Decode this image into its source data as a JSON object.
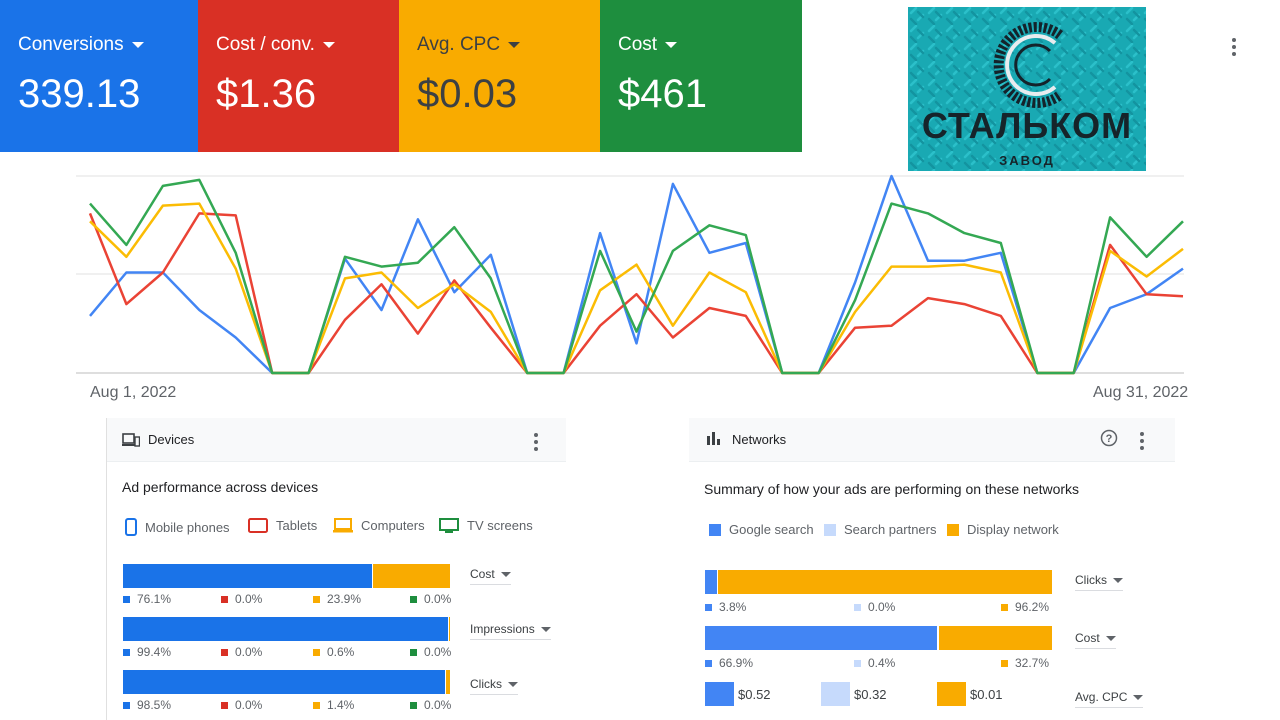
{
  "metrics": [
    {
      "id": "conversions",
      "label": "Conversions",
      "value": "339.13",
      "color": "#1a73e8"
    },
    {
      "id": "cost-conv",
      "label": "Cost / conv.",
      "value": "$1.36",
      "color": "#d93025"
    },
    {
      "id": "avg-cpc",
      "label": "Avg. CPC",
      "value": "$0.03",
      "color": "#f9ab00"
    },
    {
      "id": "cost",
      "label": "Cost",
      "value": "$461",
      "color": "#1e8e3e"
    }
  ],
  "logo": {
    "name": "СТАЛЬКОМ",
    "sub": "ЗАВОД"
  },
  "chart_data": {
    "type": "line",
    "x_start": "Aug 1, 2022",
    "x_end": "Aug 31, 2022",
    "grid": true,
    "series": [
      {
        "color": "#4285f4",
        "values": [
          0.29,
          0.51,
          0.51,
          0.32,
          0.18,
          0.0,
          0.0,
          0.58,
          0.32,
          0.78,
          0.41,
          0.6,
          0.0,
          0.0,
          0.71,
          0.15,
          0.96,
          0.61,
          0.66,
          0.0,
          0.0,
          0.46,
          1.0,
          0.57,
          0.57,
          0.61,
          0.0,
          0.0,
          0.33,
          0.4,
          0.53
        ]
      },
      {
        "color": "#ea4335",
        "values": [
          0.81,
          0.35,
          0.51,
          0.81,
          0.8,
          0.0,
          0.0,
          0.27,
          0.45,
          0.2,
          0.47,
          0.23,
          0.0,
          0.0,
          0.24,
          0.4,
          0.18,
          0.33,
          0.29,
          0.0,
          0.0,
          0.23,
          0.24,
          0.38,
          0.35,
          0.29,
          0.0,
          0.0,
          0.65,
          0.4,
          0.39
        ]
      },
      {
        "color": "#fbbc04",
        "values": [
          0.77,
          0.59,
          0.85,
          0.86,
          0.53,
          0.0,
          0.0,
          0.48,
          0.51,
          0.33,
          0.45,
          0.31,
          0.0,
          0.0,
          0.42,
          0.55,
          0.24,
          0.51,
          0.41,
          0.0,
          0.0,
          0.31,
          0.54,
          0.54,
          0.55,
          0.51,
          0.0,
          0.0,
          0.62,
          0.49,
          0.63
        ]
      },
      {
        "color": "#34a853",
        "values": [
          0.86,
          0.65,
          0.95,
          0.98,
          0.61,
          0.0,
          0.0,
          0.59,
          0.54,
          0.56,
          0.74,
          0.48,
          0.0,
          0.0,
          0.62,
          0.21,
          0.62,
          0.75,
          0.7,
          0.0,
          0.0,
          0.37,
          0.86,
          0.81,
          0.71,
          0.66,
          0.0,
          0.0,
          0.79,
          0.59,
          0.77
        ]
      }
    ]
  },
  "devices": {
    "title": "Devices",
    "subtitle": "Ad performance across devices",
    "legend": [
      {
        "label": "Mobile phones",
        "color": "#1a73e8"
      },
      {
        "label": "Tablets",
        "color": "#d93025"
      },
      {
        "label": "Computers",
        "color": "#f9ab00"
      },
      {
        "label": "TV screens",
        "color": "#1e8e3e"
      }
    ],
    "rows": [
      {
        "metric": "Cost",
        "values": [
          76.1,
          0.0,
          23.9,
          0.0
        ],
        "labels": [
          "76.1%",
          "0.0%",
          "23.9%",
          "0.0%"
        ]
      },
      {
        "metric": "Impressions",
        "values": [
          99.4,
          0.0,
          0.6,
          0.0
        ],
        "labels": [
          "99.4%",
          "0.0%",
          "0.6%",
          "0.0%"
        ]
      },
      {
        "metric": "Clicks",
        "values": [
          98.5,
          0.0,
          1.4,
          0.0
        ],
        "labels": [
          "98.5%",
          "0.0%",
          "1.4%",
          "0.0%"
        ]
      }
    ]
  },
  "networks": {
    "title": "Networks",
    "subtitle": "Summary of how your ads are performing on these networks",
    "legend": [
      {
        "label": "Google search",
        "color": "#4285f4"
      },
      {
        "label": "Search partners",
        "color": "#c6dafc"
      },
      {
        "label": "Display network",
        "color": "#f9ab00"
      }
    ],
    "rows": [
      {
        "metric": "Clicks",
        "values": [
          3.8,
          0.0,
          96.2
        ],
        "labels": [
          "3.8%",
          "0.0%",
          "96.2%"
        ]
      },
      {
        "metric": "Cost",
        "values": [
          66.9,
          0.4,
          32.7
        ],
        "labels": [
          "66.9%",
          "0.4%",
          "32.7%"
        ]
      }
    ],
    "cpc": {
      "metric": "Avg. CPC",
      "values": [
        "$0.52",
        "$0.32",
        "$0.01"
      ]
    }
  }
}
